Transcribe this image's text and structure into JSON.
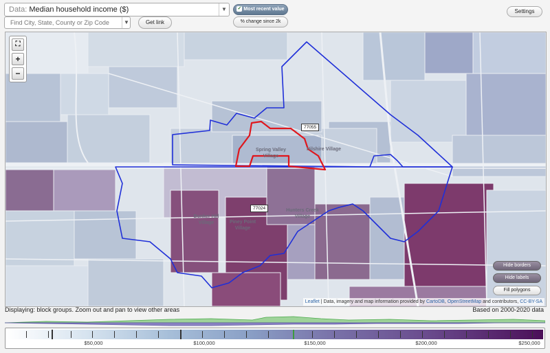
{
  "topbar": {
    "data_label": "Data:",
    "data_value": "Median household income ($)",
    "find_placeholder": "Find City, State, County or Zip Code",
    "get_link": "Get link",
    "most_recent": "Most recent value",
    "change_since": "% change since 2k",
    "settings": "Settings"
  },
  "map": {
    "zoom_full_icon": "fullscreen-icon",
    "zoom_in": "+",
    "zoom_out": "−",
    "zip_labels": [
      "77055",
      "77024"
    ],
    "place_labels": [
      {
        "lines": [
          "Spring Valley",
          "Village"
        ]
      },
      {
        "lines": [
          "Hilshire Village"
        ]
      },
      {
        "lines": [
          "Bunker Hill",
          "Village"
        ]
      },
      {
        "lines": [
          "Hunters Creek",
          "Village"
        ]
      },
      {
        "lines": [
          "Piney Point",
          "Village"
        ]
      }
    ],
    "buttons": {
      "hide_borders": "Hide borders",
      "hide_labels": "Hide labels",
      "fill_polygons": "Fill polygons"
    },
    "attribution": {
      "leaflet": "Leaflet",
      "text": "| Data, imagery and map information provided by",
      "cartodb": "CartoDB",
      "comma": ",",
      "osm": "OpenStreetMap",
      "tail": "and contributors,",
      "license": "CC-BY-SA"
    },
    "colors": {
      "boundary_blue": "#1f2fd8",
      "selected_red": "#e0161c",
      "high_income": "#7d3a6c",
      "mid_income": "#8e9fc2",
      "low_income": "#cfdbe8"
    }
  },
  "footer": {
    "displaying": "Displaying: block groups. Zoom out and pan to view other areas",
    "based_on": "Based on 2000-2020 data"
  },
  "legend": {
    "labels": [
      "$50,000",
      "$100,000",
      "$150,000",
      "$200,000",
      "$250,000"
    ]
  }
}
